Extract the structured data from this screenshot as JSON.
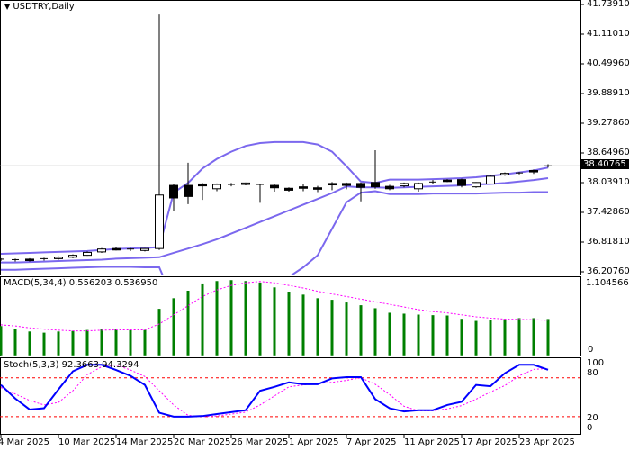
{
  "header": {
    "symbol_label": "USDTRY,Daily",
    "dropdown_icon": "triangle-down-icon"
  },
  "colors": {
    "bollinger": "#7b68ee",
    "macd_hist": "#008000",
    "macd_signal": "#ff00ff",
    "stoch_main": "#0000ff",
    "stoch_signal": "#ff00ff",
    "stoch_levels": "#ff0000",
    "current_price_bg": "#000000"
  },
  "price_axis": {
    "ticks": [
      "41.73910",
      "41.11010",
      "40.49960",
      "39.88910",
      "39.27860",
      "38.64960",
      "38.03910",
      "37.42860",
      "36.81810",
      "36.20760"
    ],
    "current_price": "38.40765"
  },
  "macd": {
    "label": "MACD(5,34,4) 0.556203 0.536950",
    "max_label": "1.104566",
    "zero_label": "0"
  },
  "stoch": {
    "label": "Stoch(5,3,3) 92.3663 94.3294",
    "levels": [
      "100",
      "80",
      "20",
      "0"
    ]
  },
  "date_axis": {
    "labels": [
      "4 Mar 2025",
      "10 Mar 2025",
      "14 Mar 2025",
      "20 Mar 2025",
      "26 Mar 2025",
      "1 Apr 2025",
      "7 Apr 2025",
      "11 Apr 2025",
      "17 Apr 2025",
      "23 Apr 2025"
    ]
  },
  "chart_data": [
    {
      "type": "candlestick",
      "title": "USDTRY,Daily",
      "ylim": [
        36.2076,
        41.7391
      ],
      "ohlc": [
        [
          36.47,
          36.49,
          36.43,
          36.45
        ],
        [
          36.45,
          36.48,
          36.42,
          36.46
        ],
        [
          36.47,
          36.49,
          36.42,
          36.44
        ],
        [
          36.46,
          36.5,
          36.44,
          36.48
        ],
        [
          36.48,
          36.53,
          36.46,
          36.51
        ],
        [
          36.51,
          36.57,
          36.49,
          36.55
        ],
        [
          36.55,
          36.63,
          36.54,
          36.61
        ],
        [
          36.62,
          36.7,
          36.6,
          36.68
        ],
        [
          36.69,
          36.72,
          36.65,
          36.66
        ],
        [
          36.68,
          36.7,
          36.64,
          36.66
        ],
        [
          36.65,
          36.7,
          36.63,
          36.69
        ],
        [
          36.69,
          41.55,
          36.66,
          37.8
        ],
        [
          38.0,
          38.03,
          37.46,
          37.74
        ],
        [
          38.0,
          38.47,
          37.61,
          37.77
        ],
        [
          38.03,
          38.05,
          37.7,
          37.99
        ],
        [
          37.93,
          38.04,
          37.88,
          38.02
        ],
        [
          38.02,
          38.05,
          37.98,
          38.02
        ],
        [
          38.02,
          38.06,
          38.0,
          38.05
        ],
        [
          38.02,
          38.03,
          37.64,
          38.02
        ],
        [
          38.0,
          38.02,
          37.87,
          37.95
        ],
        [
          37.94,
          37.96,
          37.87,
          37.9
        ],
        [
          37.97,
          38.02,
          37.88,
          37.94
        ],
        [
          37.95,
          37.99,
          37.86,
          37.92
        ],
        [
          38.04,
          38.07,
          37.9,
          38.01
        ],
        [
          38.04,
          38.06,
          37.92,
          38.0
        ],
        [
          38.04,
          38.06,
          37.67,
          37.96
        ],
        [
          38.06,
          38.73,
          37.93,
          37.97
        ],
        [
          37.98,
          38.01,
          37.9,
          37.93
        ],
        [
          37.99,
          38.06,
          37.96,
          38.04
        ],
        [
          37.93,
          38.06,
          37.87,
          38.04
        ],
        [
          38.07,
          38.11,
          38.02,
          38.07
        ],
        [
          38.11,
          38.13,
          38.07,
          38.08
        ],
        [
          38.12,
          38.14,
          37.96,
          38.0
        ],
        [
          37.97,
          38.07,
          37.95,
          38.06
        ],
        [
          38.03,
          38.21,
          38.02,
          38.19
        ],
        [
          38.22,
          38.27,
          38.2,
          38.25
        ],
        [
          38.26,
          38.28,
          38.23,
          38.26
        ],
        [
          38.31,
          38.33,
          38.24,
          38.28
        ],
        [
          38.4,
          38.44,
          38.37,
          38.40765
        ]
      ],
      "bollinger_upper": [
        36.58,
        36.59,
        36.6,
        36.61,
        36.62,
        36.63,
        36.64,
        36.66,
        36.68,
        36.69,
        36.7,
        36.72,
        37.85,
        38.05,
        38.35,
        38.55,
        38.7,
        38.82,
        38.88,
        38.9,
        38.9,
        38.9,
        38.85,
        38.7,
        38.4,
        38.08,
        38.05,
        38.12,
        38.12,
        38.12,
        38.13,
        38.14,
        38.15,
        38.17,
        38.2,
        38.23,
        38.27,
        38.31,
        38.37
      ],
      "bollinger_middle": [
        36.4,
        36.4,
        36.41,
        36.42,
        36.43,
        36.44,
        36.45,
        36.46,
        36.48,
        36.49,
        36.5,
        36.51,
        36.6,
        36.69,
        36.78,
        36.88,
        37.0,
        37.12,
        37.24,
        37.36,
        37.48,
        37.6,
        37.72,
        37.84,
        37.98,
        37.96,
        37.96,
        37.95,
        37.96,
        37.97,
        37.98,
        37.99,
        38.0,
        38.02,
        38.03,
        38.05,
        38.08,
        38.11,
        38.15
      ],
      "bollinger_lower": [
        36.25,
        36.25,
        36.26,
        36.27,
        36.28,
        36.29,
        36.3,
        36.31,
        36.31,
        36.31,
        36.3,
        36.3,
        35.6,
        35.4,
        35.3,
        35.25,
        35.3,
        35.45,
        35.62,
        35.85,
        36.1,
        36.3,
        36.55,
        37.1,
        37.65,
        37.85,
        37.88,
        37.82,
        37.82,
        37.82,
        37.83,
        37.83,
        37.83,
        37.83,
        37.84,
        37.85,
        37.85,
        37.86,
        37.86
      ]
    },
    {
      "type": "bar",
      "title": "MACD(5,34,4)",
      "ylim": [
        0,
        1.104566
      ],
      "histogram": [
        0.448,
        0.402,
        0.365,
        0.347,
        0.365,
        0.374,
        0.388,
        0.402,
        0.402,
        0.388,
        0.388,
        0.712,
        0.874,
        0.989,
        1.1,
        1.137,
        1.151,
        1.137,
        1.114,
        1.04,
        0.975,
        0.929,
        0.874,
        0.85,
        0.809,
        0.767,
        0.721,
        0.652,
        0.638,
        0.624,
        0.615,
        0.61,
        0.559,
        0.527,
        0.541,
        0.555,
        0.569,
        0.569,
        0.556203
      ],
      "signal": [
        0.467,
        0.45,
        0.42,
        0.4,
        0.385,
        0.375,
        0.375,
        0.385,
        0.39,
        0.39,
        0.39,
        0.48,
        0.62,
        0.76,
        0.9,
        1.0,
        1.07,
        1.11,
        1.13,
        1.11,
        1.07,
        1.03,
        0.98,
        0.94,
        0.9,
        0.86,
        0.82,
        0.78,
        0.74,
        0.7,
        0.67,
        0.65,
        0.62,
        0.59,
        0.57,
        0.555,
        0.55,
        0.545,
        0.53695
      ]
    },
    {
      "type": "line",
      "title": "Stoch(5,3,3)",
      "ylim": [
        0,
        100
      ],
      "levels": [
        80,
        20
      ],
      "main": [
        69,
        48,
        31,
        33,
        62,
        90,
        100,
        100,
        92,
        83,
        69,
        26,
        20,
        20,
        21,
        24,
        27,
        30,
        60,
        66,
        73,
        70,
        70,
        79,
        81,
        81,
        47,
        33,
        28,
        30,
        30,
        38,
        43,
        69,
        67,
        87,
        100,
        100,
        92.3663
      ],
      "signal": [
        65,
        55,
        45,
        38,
        42,
        60,
        85,
        97,
        100,
        92,
        82,
        60,
        38,
        22,
        20,
        21,
        24,
        27,
        38,
        52,
        66,
        69,
        71,
        73,
        76,
        80,
        70,
        54,
        36,
        29,
        29,
        32,
        37,
        47,
        58,
        68,
        83,
        93,
        94.3294
      ]
    }
  ]
}
